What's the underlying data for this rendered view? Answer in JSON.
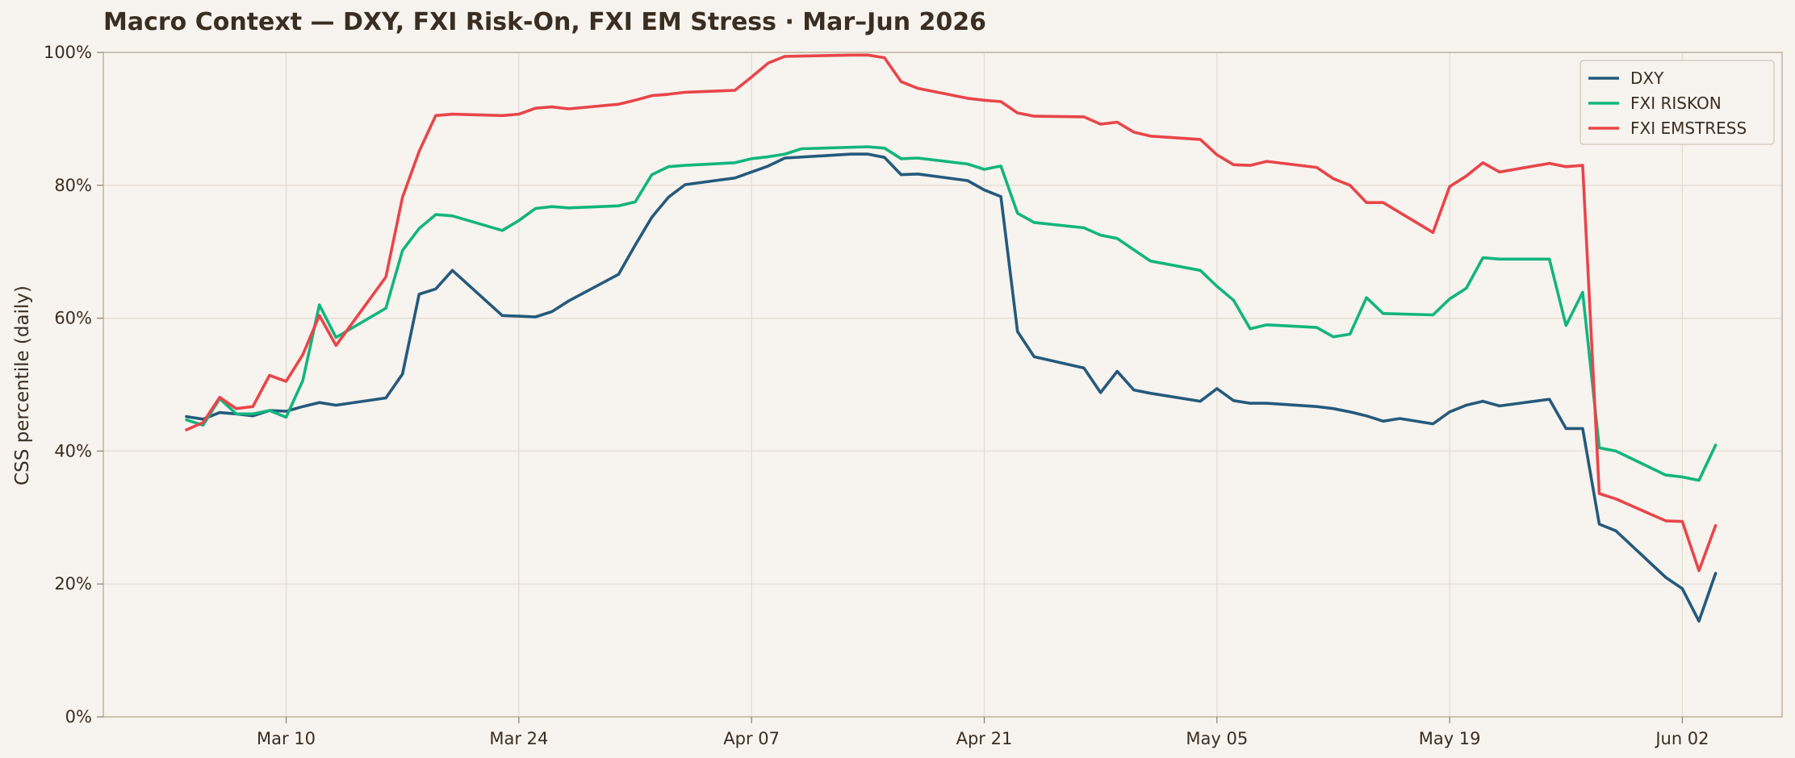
{
  "chart_data": {
    "type": "line",
    "title": "Macro Context — DXY, FXI Risk-On, FXI EM Stress · Mar–Jun 2026",
    "ylabel": "CSS percentile (daily)",
    "xlabel": "",
    "x_range": [
      "2026-02-27",
      "2026-06-08"
    ],
    "ylim": [
      0,
      100
    ],
    "y_ticks": [
      0,
      20,
      40,
      60,
      80,
      100
    ],
    "y_tick_labels": [
      "0%",
      "20%",
      "40%",
      "60%",
      "80%",
      "100%"
    ],
    "x_ticks": [
      "2026-03-10",
      "2026-03-24",
      "2026-04-07",
      "2026-04-21",
      "2026-05-05",
      "2026-05-19",
      "2026-06-02"
    ],
    "x_tick_labels": [
      "Mar 10",
      "Mar 24",
      "Apr 07",
      "Apr 21",
      "May 05",
      "May 19",
      "Jun 02"
    ],
    "grid": true,
    "legend_position": "top-right",
    "series": [
      {
        "name": "DXY",
        "color": "#245a7c",
        "points": [
          [
            "2026-03-04",
            45.2
          ],
          [
            "2026-03-05",
            44.8
          ],
          [
            "2026-03-06",
            45.8
          ],
          [
            "2026-03-07",
            45.6
          ],
          [
            "2026-03-08",
            45.3
          ],
          [
            "2026-03-09",
            46.1
          ],
          [
            "2026-03-10",
            46.0
          ],
          [
            "2026-03-11",
            46.7
          ],
          [
            "2026-03-12",
            47.3
          ],
          [
            "2026-03-13",
            46.9
          ],
          [
            "2026-03-16",
            48.0
          ],
          [
            "2026-03-17",
            51.6
          ],
          [
            "2026-03-18",
            63.6
          ],
          [
            "2026-03-19",
            64.4
          ],
          [
            "2026-03-20",
            67.2
          ],
          [
            "2026-03-23",
            60.4
          ],
          [
            "2026-03-24",
            60.3
          ],
          [
            "2026-03-25",
            60.2
          ],
          [
            "2026-03-26",
            61.0
          ],
          [
            "2026-03-27",
            62.6
          ],
          [
            "2026-03-30",
            66.6
          ],
          [
            "2026-03-31",
            71.0
          ],
          [
            "2026-04-01",
            75.2
          ],
          [
            "2026-04-02",
            78.2
          ],
          [
            "2026-04-03",
            80.1
          ],
          [
            "2026-04-06",
            81.1
          ],
          [
            "2026-04-07",
            82.0
          ],
          [
            "2026-04-08",
            82.9
          ],
          [
            "2026-04-09",
            84.1
          ],
          [
            "2026-04-13",
            84.7
          ],
          [
            "2026-04-14",
            84.7
          ],
          [
            "2026-04-15",
            84.2
          ],
          [
            "2026-04-16",
            81.6
          ],
          [
            "2026-04-17",
            81.7
          ],
          [
            "2026-04-20",
            80.7
          ],
          [
            "2026-04-21",
            79.3
          ],
          [
            "2026-04-22",
            78.3
          ],
          [
            "2026-04-23",
            58.0
          ],
          [
            "2026-04-24",
            54.2
          ],
          [
            "2026-04-27",
            52.5
          ],
          [
            "2026-04-28",
            48.8
          ],
          [
            "2026-04-29",
            52.0
          ],
          [
            "2026-04-30",
            49.2
          ],
          [
            "2026-05-01",
            48.7
          ],
          [
            "2026-05-04",
            47.5
          ],
          [
            "2026-05-05",
            49.4
          ],
          [
            "2026-05-06",
            47.6
          ],
          [
            "2026-05-07",
            47.2
          ],
          [
            "2026-05-08",
            47.2
          ],
          [
            "2026-05-11",
            46.7
          ],
          [
            "2026-05-12",
            46.4
          ],
          [
            "2026-05-13",
            45.9
          ],
          [
            "2026-05-14",
            45.3
          ],
          [
            "2026-05-15",
            44.5
          ],
          [
            "2026-05-16",
            44.9
          ],
          [
            "2026-05-18",
            44.1
          ],
          [
            "2026-05-19",
            45.9
          ],
          [
            "2026-05-20",
            46.9
          ],
          [
            "2026-05-21",
            47.5
          ],
          [
            "2026-05-22",
            46.8
          ],
          [
            "2026-05-25",
            47.8
          ],
          [
            "2026-05-26",
            43.4
          ],
          [
            "2026-05-27",
            43.4
          ],
          [
            "2026-05-28",
            29.0
          ],
          [
            "2026-05-29",
            28.0
          ],
          [
            "2026-06-01",
            21.0
          ],
          [
            "2026-06-02",
            19.3
          ],
          [
            "2026-06-03",
            14.4
          ],
          [
            "2026-06-04",
            21.6
          ]
        ]
      },
      {
        "name": "FXI RISKON",
        "color": "#12b57e",
        "points": [
          [
            "2026-03-04",
            44.7
          ],
          [
            "2026-03-05",
            43.9
          ],
          [
            "2026-03-06",
            47.9
          ],
          [
            "2026-03-07",
            45.6
          ],
          [
            "2026-03-08",
            45.6
          ],
          [
            "2026-03-09",
            46.1
          ],
          [
            "2026-03-10",
            45.1
          ],
          [
            "2026-03-11",
            50.6
          ],
          [
            "2026-03-12",
            62.0
          ],
          [
            "2026-03-13",
            57.1
          ],
          [
            "2026-03-16",
            61.5
          ],
          [
            "2026-03-17",
            70.2
          ],
          [
            "2026-03-18",
            73.5
          ],
          [
            "2026-03-19",
            75.6
          ],
          [
            "2026-03-20",
            75.4
          ],
          [
            "2026-03-23",
            73.2
          ],
          [
            "2026-03-24",
            74.7
          ],
          [
            "2026-03-25",
            76.5
          ],
          [
            "2026-03-26",
            76.8
          ],
          [
            "2026-03-27",
            76.6
          ],
          [
            "2026-03-30",
            76.9
          ],
          [
            "2026-03-31",
            77.5
          ],
          [
            "2026-04-01",
            81.6
          ],
          [
            "2026-04-02",
            82.8
          ],
          [
            "2026-04-03",
            83.0
          ],
          [
            "2026-04-06",
            83.4
          ],
          [
            "2026-04-07",
            84.0
          ],
          [
            "2026-04-08",
            84.3
          ],
          [
            "2026-04-09",
            84.7
          ],
          [
            "2026-04-10",
            85.5
          ],
          [
            "2026-04-14",
            85.8
          ],
          [
            "2026-04-15",
            85.6
          ],
          [
            "2026-04-16",
            84.0
          ],
          [
            "2026-04-17",
            84.1
          ],
          [
            "2026-04-20",
            83.2
          ],
          [
            "2026-04-21",
            82.4
          ],
          [
            "2026-04-22",
            82.9
          ],
          [
            "2026-04-23",
            75.8
          ],
          [
            "2026-04-24",
            74.4
          ],
          [
            "2026-04-27",
            73.6
          ],
          [
            "2026-04-28",
            72.5
          ],
          [
            "2026-04-29",
            72.0
          ],
          [
            "2026-04-30",
            70.3
          ],
          [
            "2026-05-01",
            68.6
          ],
          [
            "2026-05-04",
            67.2
          ],
          [
            "2026-05-05",
            64.8
          ],
          [
            "2026-05-06",
            62.7
          ],
          [
            "2026-05-07",
            58.4
          ],
          [
            "2026-05-08",
            59.0
          ],
          [
            "2026-05-11",
            58.6
          ],
          [
            "2026-05-12",
            57.2
          ],
          [
            "2026-05-13",
            57.6
          ],
          [
            "2026-05-14",
            63.1
          ],
          [
            "2026-05-15",
            60.7
          ],
          [
            "2026-05-18",
            60.5
          ],
          [
            "2026-05-19",
            62.9
          ],
          [
            "2026-05-20",
            64.5
          ],
          [
            "2026-05-21",
            69.1
          ],
          [
            "2026-05-22",
            68.9
          ],
          [
            "2026-05-25",
            68.9
          ],
          [
            "2026-05-26",
            58.9
          ],
          [
            "2026-05-27",
            63.9
          ],
          [
            "2026-05-28",
            40.5
          ],
          [
            "2026-05-29",
            40.0
          ],
          [
            "2026-06-01",
            36.4
          ],
          [
            "2026-06-02",
            36.1
          ],
          [
            "2026-06-03",
            35.6
          ],
          [
            "2026-06-04",
            40.9
          ]
        ]
      },
      {
        "name": "FXI EMSTRESS",
        "color": "#e8454a",
        "points": [
          [
            "2026-03-04",
            43.2
          ],
          [
            "2026-03-05",
            44.3
          ],
          [
            "2026-03-06",
            48.1
          ],
          [
            "2026-03-07",
            46.4
          ],
          [
            "2026-03-08",
            46.7
          ],
          [
            "2026-03-09",
            51.4
          ],
          [
            "2026-03-10",
            50.5
          ],
          [
            "2026-03-11",
            54.5
          ],
          [
            "2026-03-12",
            60.4
          ],
          [
            "2026-03-13",
            55.9
          ],
          [
            "2026-03-16",
            66.2
          ],
          [
            "2026-03-17",
            78.2
          ],
          [
            "2026-03-18",
            85.1
          ],
          [
            "2026-03-19",
            90.5
          ],
          [
            "2026-03-20",
            90.7
          ],
          [
            "2026-03-23",
            90.5
          ],
          [
            "2026-03-24",
            90.7
          ],
          [
            "2026-03-25",
            91.6
          ],
          [
            "2026-03-26",
            91.8
          ],
          [
            "2026-03-27",
            91.5
          ],
          [
            "2026-03-30",
            92.2
          ],
          [
            "2026-03-31",
            92.8
          ],
          [
            "2026-04-01",
            93.5
          ],
          [
            "2026-04-02",
            93.7
          ],
          [
            "2026-04-03",
            94.0
          ],
          [
            "2026-04-06",
            94.3
          ],
          [
            "2026-04-07",
            96.3
          ],
          [
            "2026-04-08",
            98.4
          ],
          [
            "2026-04-09",
            99.4
          ],
          [
            "2026-04-13",
            99.6
          ],
          [
            "2026-04-14",
            99.6
          ],
          [
            "2026-04-15",
            99.2
          ],
          [
            "2026-04-16",
            95.6
          ],
          [
            "2026-04-17",
            94.6
          ],
          [
            "2026-04-20",
            93.1
          ],
          [
            "2026-04-21",
            92.8
          ],
          [
            "2026-04-22",
            92.6
          ],
          [
            "2026-04-23",
            90.9
          ],
          [
            "2026-04-24",
            90.4
          ],
          [
            "2026-04-27",
            90.3
          ],
          [
            "2026-04-28",
            89.2
          ],
          [
            "2026-04-29",
            89.5
          ],
          [
            "2026-04-30",
            88.0
          ],
          [
            "2026-05-01",
            87.4
          ],
          [
            "2026-05-04",
            86.9
          ],
          [
            "2026-05-05",
            84.6
          ],
          [
            "2026-05-06",
            83.1
          ],
          [
            "2026-05-07",
            83.0
          ],
          [
            "2026-05-08",
            83.6
          ],
          [
            "2026-05-11",
            82.7
          ],
          [
            "2026-05-12",
            81.0
          ],
          [
            "2026-05-13",
            80.0
          ],
          [
            "2026-05-14",
            77.4
          ],
          [
            "2026-05-15",
            77.4
          ],
          [
            "2026-05-18",
            72.9
          ],
          [
            "2026-05-19",
            79.8
          ],
          [
            "2026-05-20",
            81.4
          ],
          [
            "2026-05-21",
            83.4
          ],
          [
            "2026-05-22",
            82.0
          ],
          [
            "2026-05-25",
            83.3
          ],
          [
            "2026-05-26",
            82.8
          ],
          [
            "2026-05-27",
            83.0
          ],
          [
            "2026-05-28",
            33.6
          ],
          [
            "2026-05-29",
            32.8
          ],
          [
            "2026-06-01",
            29.5
          ],
          [
            "2026-06-02",
            29.4
          ],
          [
            "2026-06-03",
            22.0
          ],
          [
            "2026-06-04",
            28.8
          ]
        ]
      }
    ]
  }
}
